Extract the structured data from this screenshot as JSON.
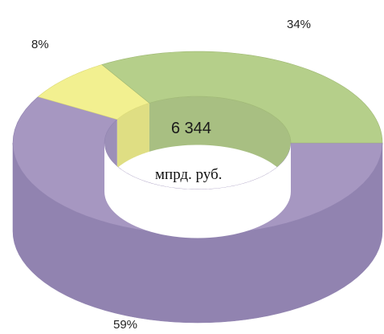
{
  "chart_data": {
    "type": "pie",
    "slices": [
      {
        "label": "34%",
        "value": 34,
        "color": "#b5cf8a",
        "side": "#9fb874"
      },
      {
        "label": "59%",
        "value": 59,
        "color": "#a697c1",
        "side": "#9183b0"
      },
      {
        "label": "8%",
        "value": 8,
        "color": "#f2f090",
        "side": "#dcda76"
      }
    ],
    "center_value": "6 344",
    "center_unit": "мпрд. руб."
  }
}
